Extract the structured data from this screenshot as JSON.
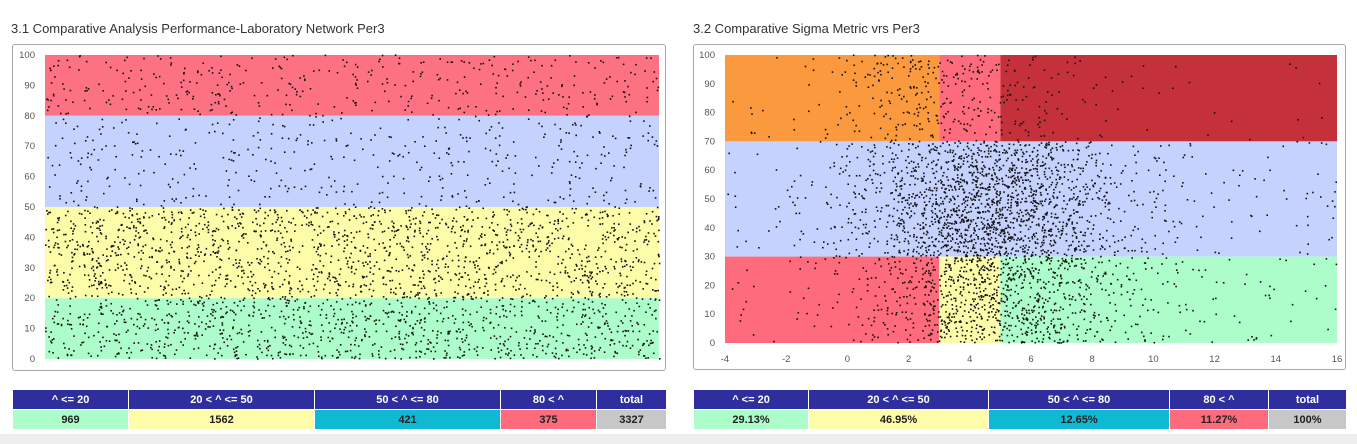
{
  "panels": [
    {
      "title": "3.1 Comparative Analysis Performance-Laboratory Network Per3",
      "table": {
        "headers": [
          "^ <= 20",
          "20 < ^ <= 50",
          "50 < ^ <= 80",
          "80 < ^",
          "total"
        ],
        "values": [
          "969",
          "1562",
          "421",
          "375",
          "3327"
        ]
      }
    },
    {
      "title": "3.2 Comparative Sigma Metric vrs Per3",
      "table": {
        "headers": [
          "^ <= 20",
          "20 < ^ <= 50",
          "50 < ^ <= 80",
          "80 < ^",
          "total"
        ],
        "values": [
          "29.13%",
          "46.95%",
          "12.65%",
          "11.27%",
          "100%"
        ]
      }
    }
  ],
  "colors": {
    "red_band": "#fd7282",
    "blue_band": "#c6d2fe",
    "yellow_band": "#fdfca9",
    "green_band": "#adfdcb",
    "orange_zone": "#fb993f",
    "pink_zone": "#fd6b7d",
    "dark_red_zone": "#c5313b",
    "header_bg": "#2e2e9e",
    "cell_green": "#adfdcb",
    "cell_yellow": "#fdfca9",
    "cell_cyan": "#0fb9d4",
    "cell_pink": "#fd6b7d",
    "cell_gray": "#c7c7c7"
  },
  "chart_data": [
    {
      "type": "scatter",
      "title": "3.1 Comparative Analysis Performance-Laboratory Network Per3",
      "xlabel": "",
      "ylabel": "",
      "ylim": [
        0,
        100
      ],
      "yticks": [
        "0",
        "10",
        "20",
        "30",
        "40",
        "50",
        "60",
        "70",
        "80",
        "90",
        "100"
      ],
      "grid": false,
      "legend": "none",
      "bands": [
        {
          "from": 80,
          "to": 100,
          "color": "#fd7282"
        },
        {
          "from": 50,
          "to": 80,
          "color": "#c6d2fe"
        },
        {
          "from": 20,
          "to": 50,
          "color": "#fdfca9"
        },
        {
          "from": 0,
          "to": 20,
          "color": "#adfdcb"
        }
      ],
      "point_count": 3327,
      "points_by_band": {
        "le_20": 969,
        "20_to_50": 1562,
        "50_to_80": 421,
        "gt_80": 375
      }
    },
    {
      "type": "scatter",
      "title": "3.2 Comparative Sigma Metric vrs Per3",
      "xlabel": "",
      "ylabel": "",
      "xlim": [
        -4,
        16
      ],
      "ylim": [
        0,
        100
      ],
      "xticks": [
        "-4",
        "-2",
        "0",
        "2",
        "4",
        "6",
        "8",
        "10",
        "12",
        "14",
        "16"
      ],
      "yticks": [
        "0",
        "10",
        "20",
        "30",
        "40",
        "50",
        "60",
        "70",
        "80",
        "90",
        "100"
      ],
      "grid": false,
      "legend": "none",
      "zones": [
        {
          "x0": -4,
          "x1": 3,
          "y0": 70,
          "y1": 100,
          "color": "#fb993f"
        },
        {
          "x0": 3,
          "x1": 5,
          "y0": 70,
          "y1": 100,
          "color": "#fd6b7d"
        },
        {
          "x0": 5,
          "x1": 16,
          "y0": 70,
          "y1": 100,
          "color": "#c5313b"
        },
        {
          "x0": -4,
          "x1": 16,
          "y0": 30,
          "y1": 70,
          "color": "#c6d2fe"
        },
        {
          "x0": -4,
          "x1": 3,
          "y0": 0,
          "y1": 30,
          "color": "#fd6b7d"
        },
        {
          "x0": 3,
          "x1": 5,
          "y0": 0,
          "y1": 30,
          "color": "#fdfca9"
        },
        {
          "x0": 5,
          "x1": 16,
          "y0": 0,
          "y1": 30,
          "color": "#adfdcb"
        }
      ],
      "point_share": {
        "le_20": 29.13,
        "20_to_50": 46.95,
        "50_to_80": 12.65,
        "gt_80": 11.27
      }
    }
  ]
}
